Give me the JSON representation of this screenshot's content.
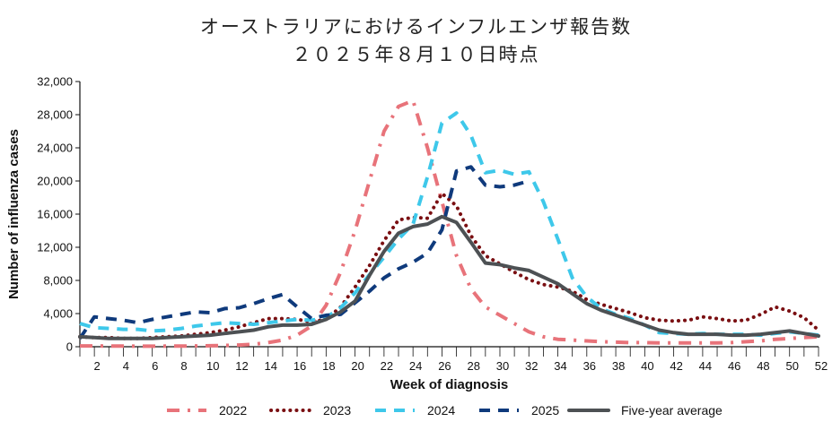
{
  "title_line1": "オーストラリアにおけるインフルエンザ報告数",
  "title_line2": "２０２５年８月１０日時点",
  "chart_data": {
    "type": "line",
    "xlabel": "Week of diagnosis",
    "ylabel": "Number of influenza cases",
    "xlim": [
      1,
      52
    ],
    "ylim": [
      0,
      32000
    ],
    "x_ticks": [
      2,
      4,
      6,
      8,
      10,
      12,
      14,
      16,
      18,
      20,
      22,
      24,
      26,
      28,
      30,
      32,
      34,
      36,
      38,
      40,
      42,
      44,
      46,
      48,
      50,
      52
    ],
    "y_ticks": [
      0,
      4000,
      8000,
      12000,
      16000,
      20000,
      24000,
      28000,
      32000
    ],
    "y_tick_labels": [
      "0",
      "4,000",
      "8,000",
      "12,000",
      "16,000",
      "20,000",
      "24,000",
      "28,000",
      "32,000"
    ],
    "legend_position": "bottom",
    "series": [
      {
        "name": "2022",
        "color": "#e8737a",
        "style": "dashdot",
        "x": [
          1,
          2,
          3,
          4,
          5,
          6,
          7,
          8,
          9,
          10,
          11,
          12,
          13,
          14,
          15,
          16,
          17,
          18,
          19,
          20,
          21,
          22,
          23,
          24,
          25,
          26,
          27,
          28,
          29,
          30,
          31,
          32,
          33,
          34,
          35,
          36,
          37,
          38,
          39,
          40,
          41,
          42,
          43,
          44,
          45,
          46,
          47,
          48,
          49,
          50,
          51,
          52
        ],
        "values": [
          100,
          100,
          80,
          80,
          60,
          60,
          80,
          80,
          100,
          120,
          150,
          200,
          300,
          500,
          800,
          1400,
          2500,
          5000,
          9000,
          14000,
          20000,
          26000,
          29000,
          29700,
          24000,
          17500,
          11000,
          7000,
          4800,
          3800,
          2800,
          1800,
          1200,
          900,
          800,
          700,
          600,
          550,
          500,
          500,
          450,
          450,
          450,
          450,
          450,
          500,
          600,
          700,
          900,
          1000,
          1100,
          1200
        ]
      },
      {
        "name": "2023",
        "color": "#7a0f12",
        "style": "dotted",
        "x": [
          1,
          2,
          3,
          4,
          5,
          6,
          7,
          8,
          9,
          10,
          11,
          12,
          13,
          14,
          15,
          16,
          17,
          18,
          19,
          20,
          21,
          22,
          23,
          24,
          25,
          26,
          27,
          28,
          29,
          30,
          31,
          32,
          33,
          34,
          35,
          36,
          37,
          38,
          39,
          40,
          41,
          42,
          43,
          44,
          45,
          46,
          47,
          48,
          49,
          50,
          51,
          52
        ],
        "values": [
          1200,
          1100,
          1100,
          1000,
          1000,
          1100,
          1200,
          1300,
          1500,
          1700,
          2000,
          2400,
          2900,
          3400,
          3400,
          3300,
          3000,
          3300,
          4800,
          7200,
          9800,
          12800,
          15300,
          15600,
          15500,
          18500,
          17000,
          13400,
          11000,
          10000,
          9000,
          8100,
          7500,
          7200,
          6700,
          5700,
          5100,
          4600,
          4100,
          3500,
          3200,
          3100,
          3200,
          3600,
          3400,
          3100,
          3200,
          3900,
          4800,
          4300,
          3500,
          2000
        ]
      },
      {
        "name": "2024",
        "color": "#3ec8ea",
        "style": "dashed",
        "x": [
          1,
          2,
          3,
          4,
          5,
          6,
          7,
          8,
          9,
          10,
          11,
          12,
          13,
          14,
          15,
          16,
          17,
          18,
          19,
          20,
          21,
          22,
          23,
          24,
          25,
          26,
          27,
          28,
          29,
          30,
          31,
          32,
          33,
          34,
          35,
          36,
          37,
          38,
          39,
          40,
          41,
          42,
          43,
          44,
          45,
          46,
          47,
          48,
          49,
          50,
          51,
          52
        ],
        "values": [
          2800,
          2300,
          2200,
          2100,
          2100,
          1900,
          2000,
          2200,
          2500,
          2700,
          2900,
          2800,
          2700,
          2900,
          3100,
          3300,
          3200,
          3500,
          4700,
          6500,
          8700,
          10800,
          13000,
          14800,
          20500,
          27000,
          28200,
          25500,
          21000,
          21300,
          20800,
          21100,
          17500,
          13000,
          8300,
          6000,
          4600,
          3900,
          3400,
          2600,
          1700,
          1600,
          1500,
          1600,
          1500,
          1500,
          1500,
          1400,
          1600,
          1800,
          1600,
          1400
        ]
      },
      {
        "name": "2025",
        "color": "#0f3a7c",
        "style": "dashed",
        "x": [
          1,
          2,
          3,
          4,
          5,
          6,
          7,
          8,
          9,
          10,
          11,
          12,
          13,
          14,
          15,
          16,
          17,
          18,
          19,
          20,
          21,
          22,
          23,
          24,
          25,
          26,
          27,
          28,
          29,
          30,
          31,
          32
        ],
        "values": [
          1000,
          3600,
          3400,
          3200,
          2900,
          3300,
          3600,
          3900,
          4200,
          4100,
          4600,
          4700,
          5200,
          5800,
          6300,
          4800,
          3400,
          3800,
          3900,
          5300,
          6700,
          8300,
          9400,
          10200,
          11300,
          14100,
          21200,
          21700,
          19500,
          19300,
          19500,
          20000
        ]
      },
      {
        "name": "Five-year average",
        "color": "#4d5154",
        "style": "solid",
        "x": [
          1,
          2,
          3,
          4,
          5,
          6,
          7,
          8,
          9,
          10,
          11,
          12,
          13,
          14,
          15,
          16,
          17,
          18,
          19,
          20,
          21,
          22,
          23,
          24,
          25,
          26,
          27,
          28,
          29,
          30,
          31,
          32,
          33,
          34,
          35,
          36,
          37,
          38,
          39,
          40,
          41,
          42,
          43,
          44,
          45,
          46,
          47,
          48,
          49,
          50,
          51,
          52
        ],
        "values": [
          1200,
          1100,
          1000,
          1000,
          1000,
          1000,
          1100,
          1200,
          1300,
          1400,
          1600,
          1800,
          2000,
          2400,
          2600,
          2600,
          2700,
          3300,
          4200,
          5500,
          8600,
          11500,
          13700,
          14500,
          14800,
          15700,
          15000,
          12600,
          10100,
          9900,
          9500,
          9200,
          8400,
          7600,
          6400,
          5200,
          4400,
          3800,
          3200,
          2600,
          2000,
          1700,
          1500,
          1500,
          1500,
          1400,
          1400,
          1500,
          1700,
          1900,
          1600,
          1300
        ]
      }
    ]
  }
}
